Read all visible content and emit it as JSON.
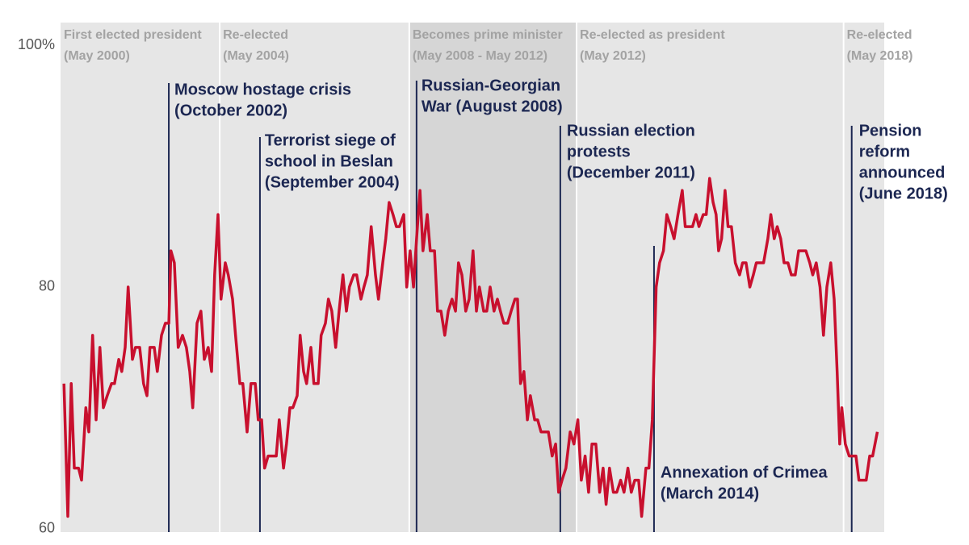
{
  "chart_data": {
    "type": "line",
    "color": "#c8102e",
    "xlim": [
      2000.22,
      2019.47
    ],
    "xticks": [
      2000,
      2001,
      2002,
      2003,
      2004,
      2005,
      2006,
      2007,
      2008,
      2009,
      2010,
      2011,
      2012,
      2013,
      2014,
      2015,
      2016,
      2017,
      2018,
      2019
    ],
    "ylim": [
      59.7,
      101.9
    ],
    "yticks": [
      {
        "value": 100,
        "label": "100%"
      },
      80,
      60
    ],
    "grid": false,
    "periods": [
      {
        "label": "First elected president",
        "dates": "(May 2000)",
        "start": 2000.22,
        "end": 2003.94,
        "color": "#e6e6e6"
      },
      {
        "label": "Re-elected",
        "dates": "(May 2004)",
        "start": 2003.94,
        "end": 2008.37,
        "color": "#e6e6e6"
      },
      {
        "label": "Becomes prime minister",
        "dates": "(May 2008 - May 2012)",
        "start": 2008.37,
        "end": 2012.28,
        "color": "#d6d6d6"
      },
      {
        "label": "Re-elected as president",
        "dates": "(May 2012)",
        "start": 2012.28,
        "end": 2018.52,
        "color": "#e6e6e6"
      },
      {
        "label": "Re-elected",
        "dates": "(May 2018)",
        "start": 2018.52,
        "end": 2019.47,
        "color": "#e6e6e6"
      }
    ],
    "annotations": [
      {
        "lines": [
          "Moscow hostage crisis",
          "(October 2002)"
        ],
        "x": 2002.75
      },
      {
        "lines": [
          "Terrorist siege of",
          "school in Beslan",
          "(September 2004)"
        ],
        "x": 2004.88
      },
      {
        "lines": [
          "Russian-Georgian",
          "War (August 2008)"
        ],
        "x": 2008.54
      },
      {
        "lines": [
          "Russian election",
          "protests",
          "(December 2011)"
        ],
        "x": 2011.9
      },
      {
        "lines": [
          "Annexation of Crimea",
          "(March 2014)"
        ],
        "x": 2014.09
      },
      {
        "lines": [
          "Pension",
          "reform",
          "announced",
          "(June 2018)"
        ],
        "x": 2018.71
      }
    ],
    "x": [
      2000.3,
      2000.39,
      2000.47,
      2000.54,
      2000.64,
      2000.71,
      2000.81,
      2000.88,
      2000.97,
      2001.05,
      2001.14,
      2001.22,
      2001.31,
      2001.41,
      2001.48,
      2001.58,
      2001.65,
      2001.73,
      2001.8,
      2001.9,
      2001.97,
      2002.07,
      2002.16,
      2002.24,
      2002.31,
      2002.41,
      2002.48,
      2002.58,
      2002.67,
      2002.75,
      2002.8,
      2002.88,
      2002.97,
      2003.07,
      2003.16,
      2003.24,
      2003.31,
      2003.41,
      2003.5,
      2003.58,
      2003.67,
      2003.75,
      2003.82,
      2003.9,
      2003.97,
      2004.07,
      2004.14,
      2004.24,
      2004.31,
      2004.41,
      2004.48,
      2004.58,
      2004.67,
      2004.77,
      2004.84,
      2004.92,
      2004.99,
      2005.07,
      2005.16,
      2005.26,
      2005.33,
      2005.43,
      2005.5,
      2005.58,
      2005.65,
      2005.75,
      2005.82,
      2005.9,
      2005.97,
      2006.07,
      2006.14,
      2006.24,
      2006.31,
      2006.41,
      2006.48,
      2006.56,
      2006.65,
      2006.73,
      2006.82,
      2006.9,
      2006.97,
      2007.07,
      2007.14,
      2007.24,
      2007.31,
      2007.39,
      2007.48,
      2007.58,
      2007.65,
      2007.75,
      2007.82,
      2007.9,
      2007.99,
      2008.07,
      2008.14,
      2008.24,
      2008.31,
      2008.39,
      2008.47,
      2008.54,
      2008.62,
      2008.69,
      2008.79,
      2008.86,
      2008.96,
      2009.03,
      2009.11,
      2009.2,
      2009.28,
      2009.37,
      2009.45,
      2009.52,
      2009.6,
      2009.69,
      2009.77,
      2009.86,
      2009.94,
      2010.01,
      2010.11,
      2010.18,
      2010.26,
      2010.35,
      2010.43,
      2010.5,
      2010.58,
      2010.67,
      2010.75,
      2010.84,
      2010.9,
      2010.97,
      2011.05,
      2011.13,
      2011.2,
      2011.3,
      2011.37,
      2011.45,
      2011.52,
      2011.62,
      2011.71,
      2011.79,
      2011.86,
      2011.94,
      2012.03,
      2012.13,
      2012.22,
      2012.31,
      2012.39,
      2012.48,
      2012.56,
      2012.64,
      2012.73,
      2012.82,
      2012.9,
      2012.97,
      2013.05,
      2013.14,
      2013.22,
      2013.31,
      2013.39,
      2013.48,
      2013.56,
      2013.64,
      2013.73,
      2013.8,
      2013.9,
      2013.97,
      2014.05,
      2014.14,
      2014.22,
      2014.31,
      2014.39,
      2014.48,
      2014.56,
      2014.65,
      2014.75,
      2014.82,
      2014.9,
      2014.99,
      2015.07,
      2015.14,
      2015.24,
      2015.31,
      2015.39,
      2015.47,
      2015.54,
      2015.6,
      2015.67,
      2015.75,
      2015.82,
      2015.9,
      2015.99,
      2016.09,
      2016.16,
      2016.24,
      2016.33,
      2016.41,
      2016.48,
      2016.58,
      2016.65,
      2016.75,
      2016.82,
      2016.9,
      2016.97,
      2017.05,
      2017.13,
      2017.22,
      2017.3,
      2017.39,
      2017.47,
      2017.56,
      2017.64,
      2017.73,
      2017.8,
      2017.88,
      2017.97,
      2018.05,
      2018.13,
      2018.22,
      2018.3,
      2018.37,
      2018.43,
      2018.48,
      2018.56,
      2018.65,
      2018.73,
      2018.81,
      2018.88,
      2018.97,
      2019.05,
      2019.13,
      2019.2,
      2019.31
    ],
    "values": [
      72,
      61,
      72,
      65,
      65,
      64,
      70,
      68,
      76,
      69,
      75,
      70,
      71,
      72,
      72,
      74,
      73,
      75,
      80,
      74,
      75,
      75,
      72,
      71,
      75,
      75,
      73,
      76,
      77,
      77,
      83,
      82,
      75,
      76,
      75,
      73,
      70,
      77,
      78,
      74,
      75,
      73,
      81,
      86,
      79,
      82,
      81,
      79,
      76,
      72,
      72,
      68,
      72,
      72,
      69,
      69,
      65,
      66,
      66,
      66,
      69,
      65,
      67,
      70,
      70,
      71,
      76,
      73,
      72,
      75,
      72,
      72,
      76,
      77,
      79,
      78,
      75,
      78,
      81,
      78,
      80,
      81,
      81,
      79,
      80,
      81,
      85,
      81,
      79,
      82,
      84,
      87,
      86,
      85,
      85,
      86,
      80,
      83,
      80,
      84,
      88,
      83,
      86,
      83,
      83,
      78,
      78,
      76,
      78,
      79,
      78,
      82,
      81,
      78,
      79,
      83,
      78,
      80,
      78,
      78,
      80,
      78,
      79,
      78,
      77,
      77,
      78,
      79,
      79,
      72,
      73,
      69,
      71,
      69,
      69,
      68,
      68,
      68,
      66,
      67,
      63,
      64,
      65,
      68,
      67,
      69,
      64,
      66,
      63,
      67,
      67,
      63,
      65,
      62,
      65,
      63,
      63,
      64,
      63,
      65,
      63,
      64,
      64,
      61,
      65,
      65,
      69,
      80,
      82,
      83,
      86,
      85,
      84,
      86,
      88,
      85,
      85,
      85,
      86,
      85,
      86,
      86,
      89,
      87,
      86,
      83,
      84,
      88,
      85,
      85,
      82,
      81,
      82,
      82,
      80,
      81,
      82,
      82,
      82,
      84,
      86,
      84,
      85,
      84,
      82,
      82,
      81,
      81,
      83,
      83,
      83,
      82,
      81,
      82,
      80,
      76,
      80,
      82,
      79,
      73,
      67,
      70,
      67,
      66,
      66,
      66,
      64,
      64,
      64,
      66,
      66,
      68
    ]
  }
}
